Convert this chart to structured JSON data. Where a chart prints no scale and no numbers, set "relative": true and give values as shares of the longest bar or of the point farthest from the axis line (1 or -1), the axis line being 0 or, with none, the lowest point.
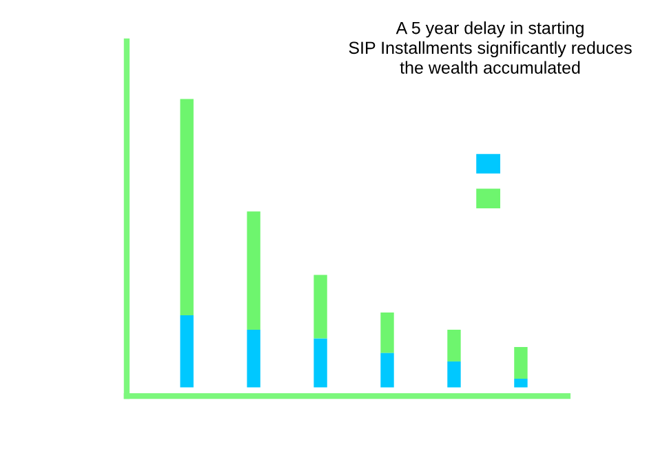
{
  "chart_data": {
    "type": "bar",
    "title": "A 5 year delay in starting\nSIP Installments significantly reduces\nthe wealth accumulated",
    "categories": [
      null,
      null,
      null,
      null,
      null,
      null
    ],
    "relative": true,
    "stacked": true,
    "grid": false,
    "series": [
      {
        "color": "#00c8ff",
        "values": [
          0.25,
          0.2,
          0.17,
          0.12,
          0.09,
          0.03
        ]
      },
      {
        "color": "#6ef56e",
        "values": [
          0.75,
          0.41,
          0.22,
          0.14,
          0.11,
          0.11
        ]
      }
    ]
  }
}
